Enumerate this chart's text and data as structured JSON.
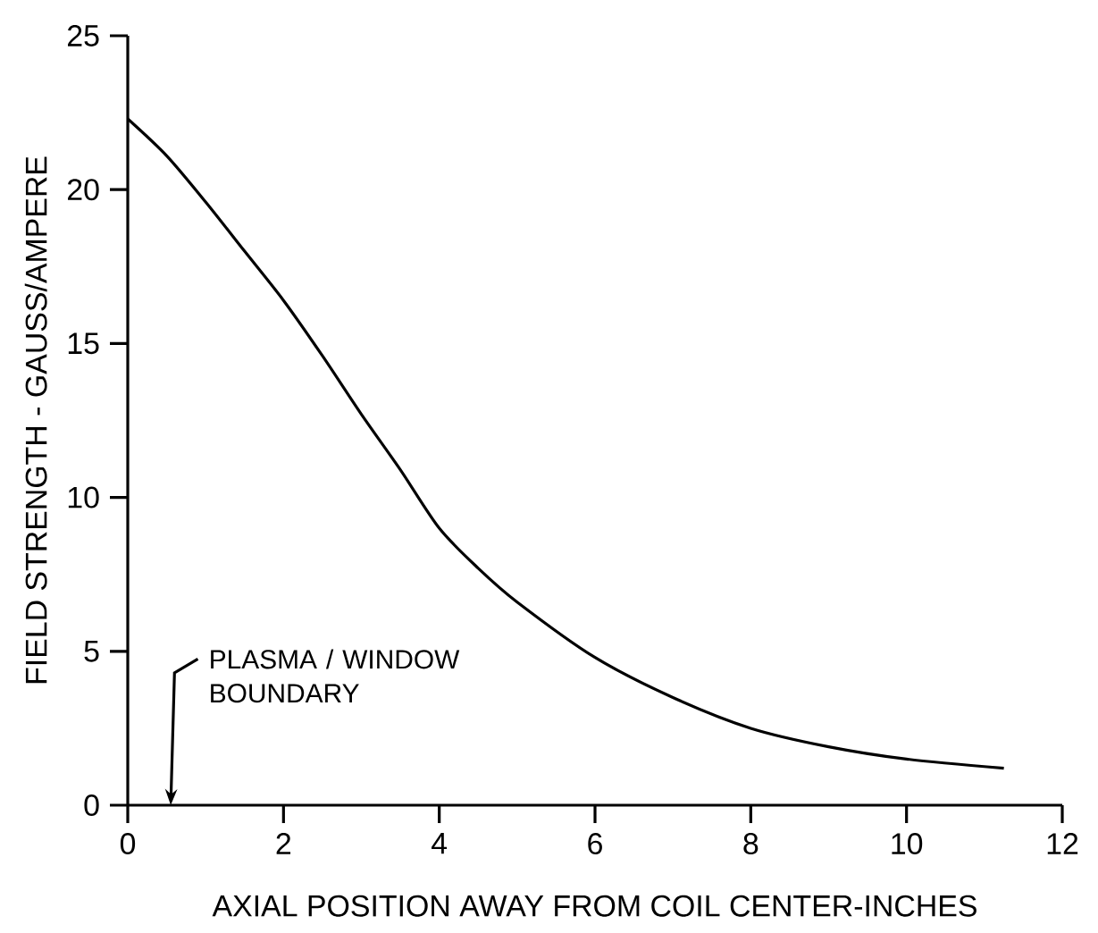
{
  "chart_data": {
    "type": "line",
    "xlabel": "AXIAL POSITION AWAY FROM COIL CENTER-INCHES",
    "ylabel": "FIELD STRENGTH - GAUSS/AMPERE",
    "x": [
      0,
      0.5,
      1,
      1.5,
      2,
      2.5,
      3,
      3.5,
      4,
      4.5,
      5,
      6,
      7,
      8,
      9,
      10,
      11.25
    ],
    "values": [
      22.3,
      21.1,
      19.6,
      18.0,
      16.4,
      14.6,
      12.7,
      10.9,
      9.0,
      7.7,
      6.6,
      4.8,
      3.5,
      2.5,
      1.9,
      1.5,
      1.2
    ],
    "color": "#000000",
    "xlim": [
      0,
      12
    ],
    "ylim": [
      0,
      25
    ],
    "xticks": [
      0,
      2,
      4,
      6,
      8,
      10,
      12
    ],
    "yticks": [
      0,
      5,
      10,
      15,
      20,
      25
    ],
    "annotations": [
      "PLASMA / WINDOW BOUNDARY"
    ]
  }
}
